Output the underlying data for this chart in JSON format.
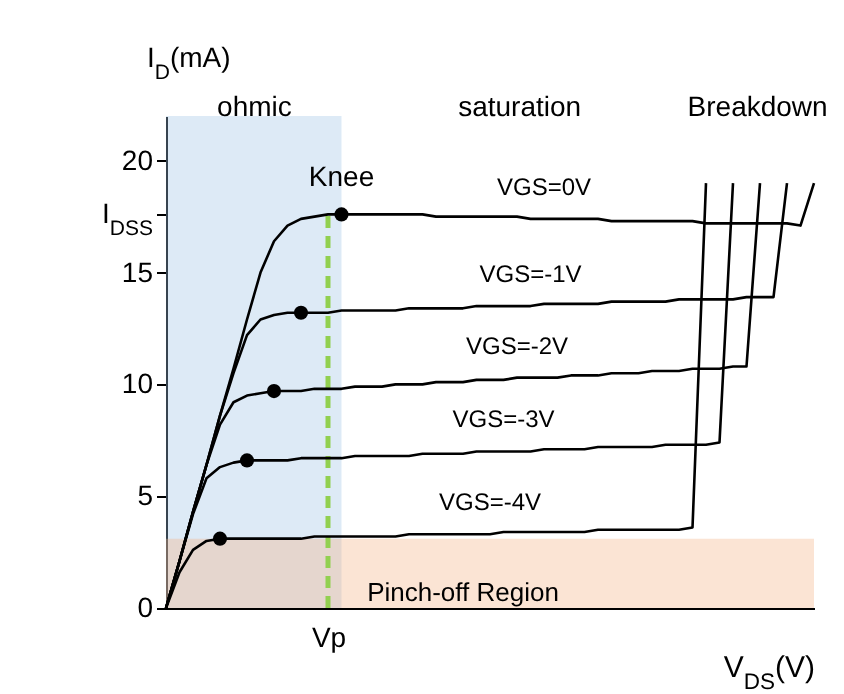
{
  "chart_data": {
    "type": "line",
    "xlabel": "V$_{DS}$(V)",
    "ylabel": "I$_{D}$(mA)",
    "categories": [
      null,
      null,
      null,
      null,
      null,
      null,
      null,
      null,
      null,
      null,
      null,
      null,
      "Vp",
      null,
      null,
      null,
      null,
      null,
      null,
      null,
      null,
      null,
      null,
      null,
      null,
      null,
      null,
      null,
      null,
      null,
      null,
      null,
      null,
      null,
      null,
      null,
      null,
      null,
      null,
      null,
      null,
      null,
      null,
      null,
      null,
      null,
      null,
      null,
      null
    ],
    "ylim": [
      0,
      22
    ],
    "yticks": [
      0,
      5,
      10,
      15,
      {
        "value": 17.6,
        "label": "I$_{DSS}$"
      },
      20
    ],
    "grid": false,
    "legend": false,
    "line_style": "solid",
    "marker": "none",
    "series": [
      {
        "name": "VGS=0V",
        "color": "#000000",
        "values": [
          0,
          2.1,
          4.3,
          6.4,
          8.6,
          10.7,
          12.9,
          15.0,
          16.4,
          17.1,
          17.4,
          17.5,
          17.6,
          17.6,
          17.6,
          17.6,
          17.6,
          17.6,
          17.6,
          17.6,
          17.5,
          17.5,
          17.5,
          17.5,
          17.5,
          17.5,
          17.5,
          17.4,
          17.4,
          17.4,
          17.4,
          17.4,
          17.4,
          17.3,
          17.3,
          17.3,
          17.3,
          17.3,
          17.3,
          17.3,
          17.2,
          17.2,
          17.2,
          17.2,
          17.2,
          17.2,
          17.2,
          17.1,
          19
        ]
      },
      {
        "name": "VGS=-1V",
        "color": "#000000",
        "values": [
          0,
          2.1,
          4.3,
          6.4,
          8.6,
          10.5,
          12.2,
          12.9,
          13.1,
          13.2,
          13.2,
          13.2,
          13.2,
          13.3,
          13.3,
          13.3,
          13.3,
          13.3,
          13.4,
          13.4,
          13.4,
          13.4,
          13.4,
          13.5,
          13.5,
          13.5,
          13.5,
          13.5,
          13.6,
          13.6,
          13.6,
          13.6,
          13.6,
          13.7,
          13.7,
          13.7,
          13.7,
          13.7,
          13.8,
          13.8,
          13.8,
          13.8,
          13.8,
          13.9,
          13.9,
          13.9,
          19,
          null,
          null
        ]
      },
      {
        "name": "VGS=-2V",
        "color": "#000000",
        "values": [
          0,
          2.1,
          4.3,
          6.4,
          8.2,
          9.2,
          9.5,
          9.6,
          9.7,
          9.7,
          9.7,
          9.8,
          9.8,
          9.8,
          9.9,
          9.9,
          9.9,
          10.0,
          10.0,
          10.0,
          10.1,
          10.1,
          10.1,
          10.2,
          10.2,
          10.2,
          10.3,
          10.3,
          10.3,
          10.3,
          10.4,
          10.4,
          10.4,
          10.5,
          10.5,
          10.5,
          10.6,
          10.6,
          10.6,
          10.7,
          10.7,
          10.7,
          10.8,
          10.8,
          19,
          null,
          null,
          null,
          null
        ]
      },
      {
        "name": "VGS=-3V",
        "color": "#000000",
        "values": [
          0,
          2.1,
          4.2,
          5.8,
          6.3,
          6.5,
          6.6,
          6.6,
          6.6,
          6.6,
          6.7,
          6.7,
          6.7,
          6.7,
          6.8,
          6.8,
          6.8,
          6.8,
          6.8,
          6.9,
          6.9,
          6.9,
          6.9,
          7.0,
          7.0,
          7.0,
          7.0,
          7.0,
          7.1,
          7.1,
          7.1,
          7.1,
          7.2,
          7.2,
          7.2,
          7.2,
          7.2,
          7.3,
          7.3,
          7.3,
          7.3,
          7.4,
          19,
          null,
          null,
          null,
          null,
          null,
          null
        ]
      },
      {
        "name": "VGS=-4V",
        "color": "#000000",
        "values": [
          0,
          1.6,
          2.6,
          3.0,
          3.1,
          3.1,
          3.1,
          3.1,
          3.1,
          3.1,
          3.1,
          3.2,
          3.2,
          3.2,
          3.2,
          3.2,
          3.2,
          3.2,
          3.3,
          3.3,
          3.3,
          3.3,
          3.3,
          3.3,
          3.3,
          3.4,
          3.4,
          3.4,
          3.4,
          3.4,
          3.4,
          3.4,
          3.5,
          3.5,
          3.5,
          3.5,
          3.5,
          3.5,
          3.5,
          3.6,
          19,
          null,
          null,
          null,
          null,
          null,
          null,
          null,
          null
        ]
      },
      {
        "type": "scatter",
        "marker": "circle",
        "color": "#000000",
        "values": [
          null,
          null,
          null,
          null,
          3.1,
          null,
          6.6,
          null,
          9.7,
          null,
          13.2,
          null,
          null,
          17.6,
          null,
          null,
          null,
          null,
          null,
          null,
          null,
          null,
          null,
          null,
          null,
          null,
          null,
          null,
          null,
          null,
          null,
          null,
          null,
          null,
          null,
          null,
          null,
          null,
          null,
          null,
          null,
          null,
          null,
          null,
          null,
          null,
          null,
          null,
          null
        ]
      }
    ],
    "bands": [
      {
        "axis": "y",
        "from": 0,
        "to": 3.1,
        "label": "Pinch-off Region",
        "color": "#f4b183"
      }
    ],
    "ref_lines": [
      {
        "axis": "x",
        "value": "Vp",
        "color": "#92d050",
        "line_style": "dashed"
      }
    ],
    "annotations": [
      "Knee",
      "ohmic",
      "saturation",
      "Breakdown"
    ]
  }
}
